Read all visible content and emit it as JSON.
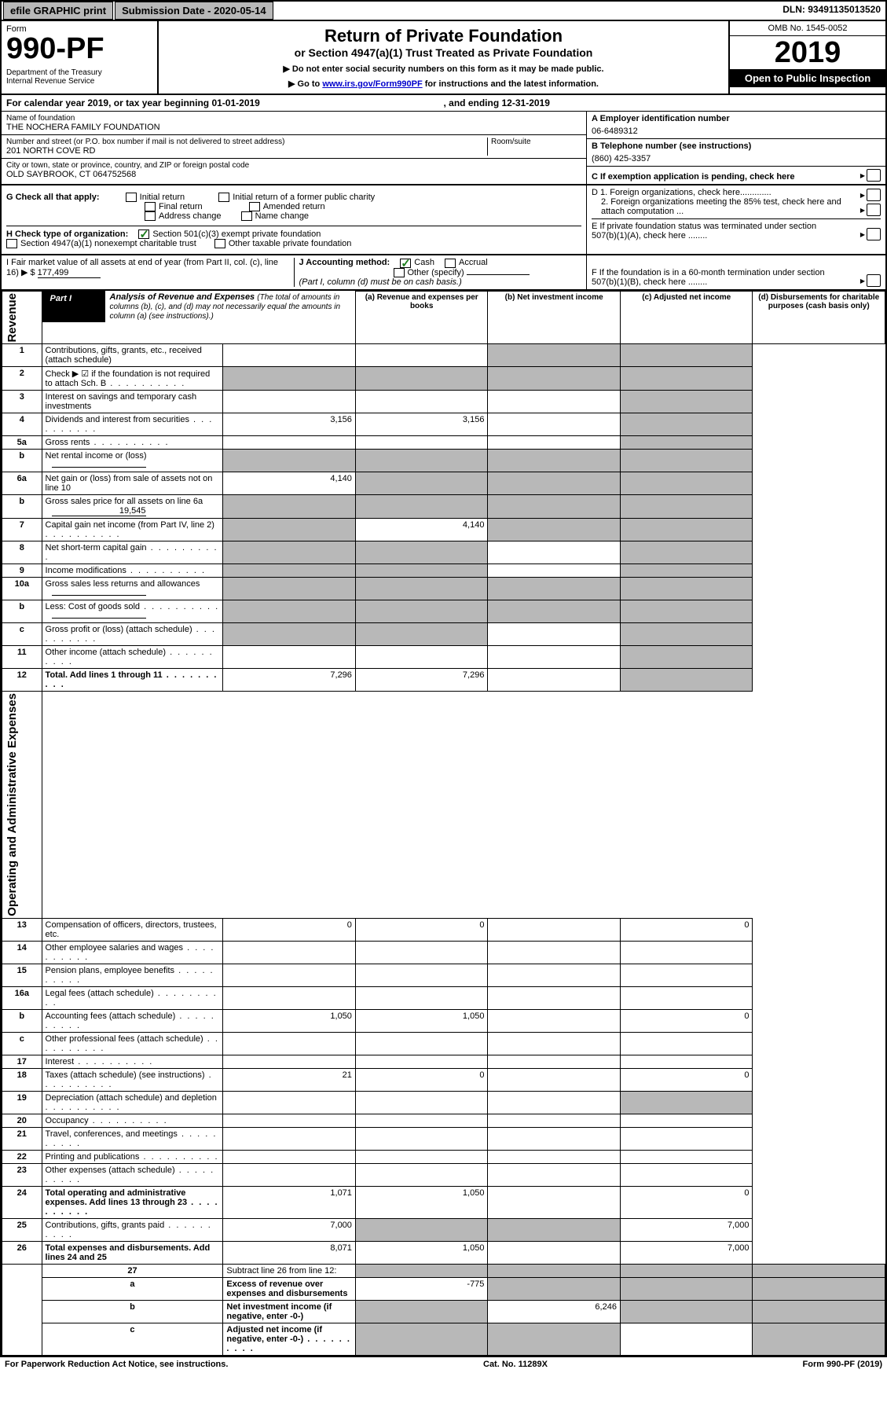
{
  "topbar": {
    "efile": "efile GRAPHIC print",
    "subdate": "Submission Date - 2020-05-14",
    "dln": "DLN: 93491135013520"
  },
  "header": {
    "formword": "Form",
    "formnum": "990-PF",
    "dept": "Department of the Treasury\nInternal Revenue Service",
    "title": "Return of Private Foundation",
    "subtitle": "or Section 4947(a)(1) Trust Treated as Private Foundation",
    "instr1": "▶ Do not enter social security numbers on this form as it may be made public.",
    "instr2_pre": "▶ Go to ",
    "instr2_link": "www.irs.gov/Form990PF",
    "instr2_post": " for instructions and the latest information.",
    "omb": "OMB No. 1545-0052",
    "year": "2019",
    "inspect": "Open to Public Inspection"
  },
  "cal": {
    "pre": "For calendar year 2019, or tax year beginning ",
    "begin": "01-01-2019",
    "mid": ", and ending ",
    "end": "12-31-2019"
  },
  "info": {
    "name_label": "Name of foundation",
    "name": "THE NOCHERA FAMILY FOUNDATION",
    "addr_label": "Number and street (or P.O. box number if mail is not delivered to street address)",
    "room_label": "Room/suite",
    "addr": "201 NORTH COVE RD",
    "city_label": "City or town, state or province, country, and ZIP or foreign postal code",
    "city": "OLD SAYBROOK, CT  064752568",
    "A_label": "A Employer identification number",
    "A_val": "06-6489312",
    "B_label": "B Telephone number (see instructions)",
    "B_val": "(860) 425-3357",
    "C_label": "C If exemption application is pending, check here",
    "D1": "D 1. Foreign organizations, check here.............",
    "D2": "2. Foreign organizations meeting the 85% test, check here and attach computation ...",
    "E": "E  If private foundation status was terminated under section 507(b)(1)(A), check here ........",
    "F": "F  If the foundation is in a 60-month termination under section 507(b)(1)(B), check here ........"
  },
  "G": {
    "label": "G Check all that apply:",
    "opts": [
      "Initial return",
      "Final return",
      "Address change",
      "Initial return of a former public charity",
      "Amended return",
      "Name change"
    ]
  },
  "H": {
    "label": "H Check type of organization:",
    "opt1": "Section 501(c)(3) exempt private foundation",
    "opt2": "Section 4947(a)(1) nonexempt charitable trust",
    "opt3": "Other taxable private foundation"
  },
  "I": {
    "label": "I Fair market value of all assets at end of year (from Part II, col. (c), line 16) ▶ $",
    "val": "177,499"
  },
  "J": {
    "label": "J Accounting method:",
    "cash": "Cash",
    "accrual": "Accrual",
    "other": "Other (specify)",
    "note": "(Part I, column (d) must be on cash basis.)"
  },
  "part1": {
    "tab": "Part I",
    "title": "Analysis of Revenue and Expenses",
    "note": "(The total of amounts in columns (b), (c), and (d) may not necessarily equal the amounts in column (a) (see instructions).)",
    "col_a": "(a)    Revenue and expenses per books",
    "col_b": "(b)   Net investment income",
    "col_c": "(c)   Adjusted net income",
    "col_d": "(d)   Disbursements for charitable purposes (cash basis only)"
  },
  "sections": {
    "revenue": "Revenue",
    "expenses": "Operating and Administrative Expenses"
  },
  "rows": [
    {
      "n": "1",
      "d": "Contributions, gifts, grants, etc., received (attach schedule)",
      "a": "",
      "b": "",
      "c": "",
      "dd": "",
      "gc": true,
      "gd": true
    },
    {
      "n": "2",
      "d": "Check ▶ ☑ if the foundation is not required to attach Sch. B",
      "dots": true,
      "a": "",
      "b": "",
      "c": "",
      "dd": "",
      "ga": true,
      "gb": true,
      "gc": true,
      "gd": true
    },
    {
      "n": "3",
      "d": "Interest on savings and temporary cash investments",
      "a": "",
      "b": "",
      "c": "",
      "dd": "",
      "gd": true
    },
    {
      "n": "4",
      "d": "Dividends and interest from securities",
      "dots": true,
      "a": "3,156",
      "b": "3,156",
      "c": "",
      "dd": "",
      "gd": true
    },
    {
      "n": "5a",
      "d": "Gross rents",
      "dots": true,
      "a": "",
      "b": "",
      "c": "",
      "dd": "",
      "gd": true
    },
    {
      "n": "b",
      "d": "Net rental income or (loss)",
      "uline": true,
      "a": "",
      "b": "",
      "c": "",
      "dd": "",
      "ga": true,
      "gb": true,
      "gc": true,
      "gd": true
    },
    {
      "n": "6a",
      "d": "Net gain or (loss) from sale of assets not on line 10",
      "a": "4,140",
      "b": "",
      "c": "",
      "dd": "",
      "gb": true,
      "gc": true,
      "gd": true
    },
    {
      "n": "b",
      "d": "Gross sales price for all assets on line 6a",
      "uline": true,
      "uval": "19,545",
      "a": "",
      "b": "",
      "c": "",
      "dd": "",
      "ga": true,
      "gb": true,
      "gc": true,
      "gd": true
    },
    {
      "n": "7",
      "d": "Capital gain net income (from Part IV, line 2)",
      "dots": true,
      "a": "",
      "b": "4,140",
      "c": "",
      "dd": "",
      "ga": true,
      "gc": true,
      "gd": true
    },
    {
      "n": "8",
      "d": "Net short-term capital gain",
      "dots": true,
      "a": "",
      "b": "",
      "c": "",
      "dd": "",
      "ga": true,
      "gb": true,
      "gd": true
    },
    {
      "n": "9",
      "d": "Income modifications",
      "dots": true,
      "a": "",
      "b": "",
      "c": "",
      "dd": "",
      "ga": true,
      "gb": true,
      "gd": true
    },
    {
      "n": "10a",
      "d": "Gross sales less returns and allowances",
      "uline": true,
      "a": "",
      "b": "",
      "c": "",
      "dd": "",
      "ga": true,
      "gb": true,
      "gc": true,
      "gd": true
    },
    {
      "n": "b",
      "d": "Less: Cost of goods sold",
      "dots": true,
      "uline": true,
      "a": "",
      "b": "",
      "c": "",
      "dd": "",
      "ga": true,
      "gb": true,
      "gc": true,
      "gd": true
    },
    {
      "n": "c",
      "d": "Gross profit or (loss) (attach schedule)",
      "dots": true,
      "a": "",
      "b": "",
      "c": "",
      "dd": "",
      "ga": true,
      "gb": true,
      "gd": true
    },
    {
      "n": "11",
      "d": "Other income (attach schedule)",
      "dots": true,
      "a": "",
      "b": "",
      "c": "",
      "dd": "",
      "gd": true
    },
    {
      "n": "12",
      "d": "Total. Add lines 1 through 11",
      "bold": true,
      "dots": true,
      "a": "7,296",
      "b": "7,296",
      "c": "",
      "dd": "",
      "gd": true
    }
  ],
  "exp_rows": [
    {
      "n": "13",
      "d": "Compensation of officers, directors, trustees, etc.",
      "a": "0",
      "b": "0",
      "c": "",
      "dd": "0"
    },
    {
      "n": "14",
      "d": "Other employee salaries and wages",
      "dots": true,
      "a": "",
      "b": "",
      "c": "",
      "dd": ""
    },
    {
      "n": "15",
      "d": "Pension plans, employee benefits",
      "dots": true,
      "a": "",
      "b": "",
      "c": "",
      "dd": ""
    },
    {
      "n": "16a",
      "d": "Legal fees (attach schedule)",
      "dots": true,
      "a": "",
      "b": "",
      "c": "",
      "dd": ""
    },
    {
      "n": "b",
      "d": "Accounting fees (attach schedule)",
      "dots": true,
      "a": "1,050",
      "b": "1,050",
      "c": "",
      "dd": "0"
    },
    {
      "n": "c",
      "d": "Other professional fees (attach schedule)",
      "dots": true,
      "a": "",
      "b": "",
      "c": "",
      "dd": ""
    },
    {
      "n": "17",
      "d": "Interest",
      "dots": true,
      "a": "",
      "b": "",
      "c": "",
      "dd": ""
    },
    {
      "n": "18",
      "d": "Taxes (attach schedule) (see instructions)",
      "dots": true,
      "a": "21",
      "b": "0",
      "c": "",
      "dd": "0"
    },
    {
      "n": "19",
      "d": "Depreciation (attach schedule) and depletion",
      "dots": true,
      "a": "",
      "b": "",
      "c": "",
      "dd": "",
      "gd": true
    },
    {
      "n": "20",
      "d": "Occupancy",
      "dots": true,
      "a": "",
      "b": "",
      "c": "",
      "dd": ""
    },
    {
      "n": "21",
      "d": "Travel, conferences, and meetings",
      "dots": true,
      "a": "",
      "b": "",
      "c": "",
      "dd": ""
    },
    {
      "n": "22",
      "d": "Printing and publications",
      "dots": true,
      "a": "",
      "b": "",
      "c": "",
      "dd": ""
    },
    {
      "n": "23",
      "d": "Other expenses (attach schedule)",
      "dots": true,
      "a": "",
      "b": "",
      "c": "",
      "dd": ""
    },
    {
      "n": "24",
      "d": "Total operating and administrative expenses. Add lines 13 through 23",
      "bold": true,
      "dots": true,
      "a": "1,071",
      "b": "1,050",
      "c": "",
      "dd": "0"
    },
    {
      "n": "25",
      "d": "Contributions, gifts, grants paid",
      "dots": true,
      "a": "7,000",
      "b": "",
      "c": "",
      "dd": "7,000",
      "gb": true,
      "gc": true
    },
    {
      "n": "26",
      "d": "Total expenses and disbursements. Add lines 24 and 25",
      "bold": true,
      "a": "8,071",
      "b": "1,050",
      "c": "",
      "dd": "7,000"
    }
  ],
  "net_rows": [
    {
      "n": "27",
      "d": "Subtract line 26 from line 12:",
      "a": "",
      "b": "",
      "c": "",
      "dd": "",
      "ga": true,
      "gb": true,
      "gc": true,
      "gd": true
    },
    {
      "n": "a",
      "d": "Excess of revenue over expenses and disbursements",
      "bold": true,
      "a": "-775",
      "b": "",
      "c": "",
      "dd": "",
      "gb": true,
      "gc": true,
      "gd": true
    },
    {
      "n": "b",
      "d": "Net investment income (if negative, enter -0-)",
      "bold": true,
      "a": "",
      "b": "6,246",
      "c": "",
      "dd": "",
      "ga": true,
      "gc": true,
      "gd": true
    },
    {
      "n": "c",
      "d": "Adjusted net income (if negative, enter -0-)",
      "bold": true,
      "dots": true,
      "a": "",
      "b": "",
      "c": "",
      "dd": "",
      "ga": true,
      "gb": true,
      "gd": true
    }
  ],
  "footer": {
    "left": "For Paperwork Reduction Act Notice, see instructions.",
    "mid": "Cat. No. 11289X",
    "right": "Form 990-PF (2019)"
  }
}
